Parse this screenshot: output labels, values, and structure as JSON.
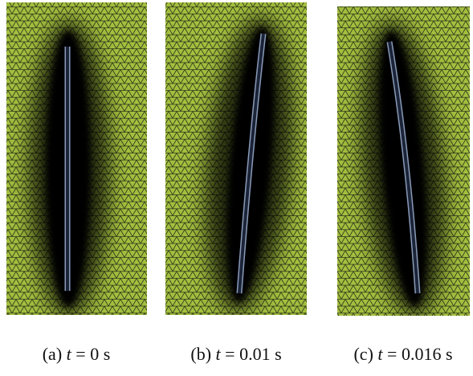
{
  "panels": [
    {
      "label": "(a)",
      "variable": "t",
      "value": "= 0 s"
    },
    {
      "label": "(b)",
      "variable": "t",
      "value": "= 0.01 s"
    },
    {
      "label": "(c)",
      "variable": "t",
      "value": "= 0.016 s"
    }
  ]
}
